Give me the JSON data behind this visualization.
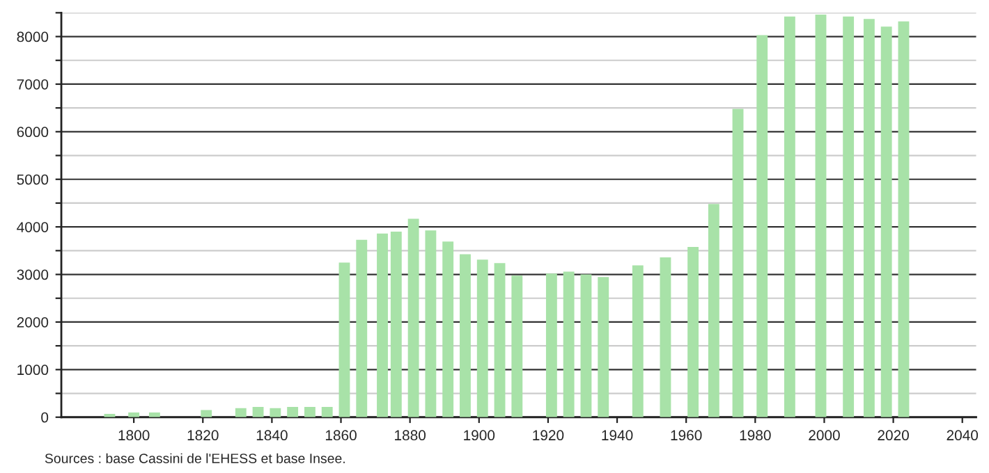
{
  "chart_data": {
    "type": "bar",
    "x": [
      1793,
      1800,
      1806,
      1821,
      1831,
      1836,
      1841,
      1846,
      1851,
      1856,
      1861,
      1866,
      1872,
      1876,
      1881,
      1886,
      1891,
      1896,
      1901,
      1906,
      1911,
      1921,
      1926,
      1931,
      1936,
      1946,
      1954,
      1962,
      1968,
      1975,
      1982,
      1990,
      1999,
      2007,
      2013,
      2018,
      2023
    ],
    "values": [
      70,
      100,
      100,
      150,
      190,
      215,
      190,
      215,
      215,
      215,
      3250,
      3730,
      3860,
      3900,
      4170,
      3925,
      3690,
      3425,
      3310,
      3240,
      2975,
      3020,
      3060,
      3000,
      2945,
      3190,
      3360,
      3580,
      4480,
      6480,
      8030,
      8420,
      8460,
      8420,
      8370,
      8210,
      8320
    ],
    "color": "#a8e2a8",
    "xlim": [
      1779,
      2044
    ],
    "xticks": [
      1800,
      1820,
      1840,
      1860,
      1880,
      1900,
      1920,
      1940,
      1960,
      1980,
      2000,
      2020,
      2040
    ],
    "ylim": [
      0,
      8500
    ],
    "yticks": [
      0,
      {
        "value": 500,
        "label": null
      },
      1000,
      {
        "value": 1500,
        "label": null
      },
      2000,
      {
        "value": 2500,
        "label": null
      },
      3000,
      {
        "value": 3500,
        "label": null
      },
      4000,
      {
        "value": 4500,
        "label": null
      },
      5000,
      {
        "value": 5500,
        "label": null
      },
      6000,
      {
        "value": 6500,
        "label": null
      },
      7000,
      {
        "value": 7500,
        "label": null
      },
      8000,
      {
        "value": 8500,
        "label": null
      }
    ],
    "grid": "y",
    "annotations": [
      "Sources : base Cassini de l'EHESS et base Insee."
    ]
  }
}
